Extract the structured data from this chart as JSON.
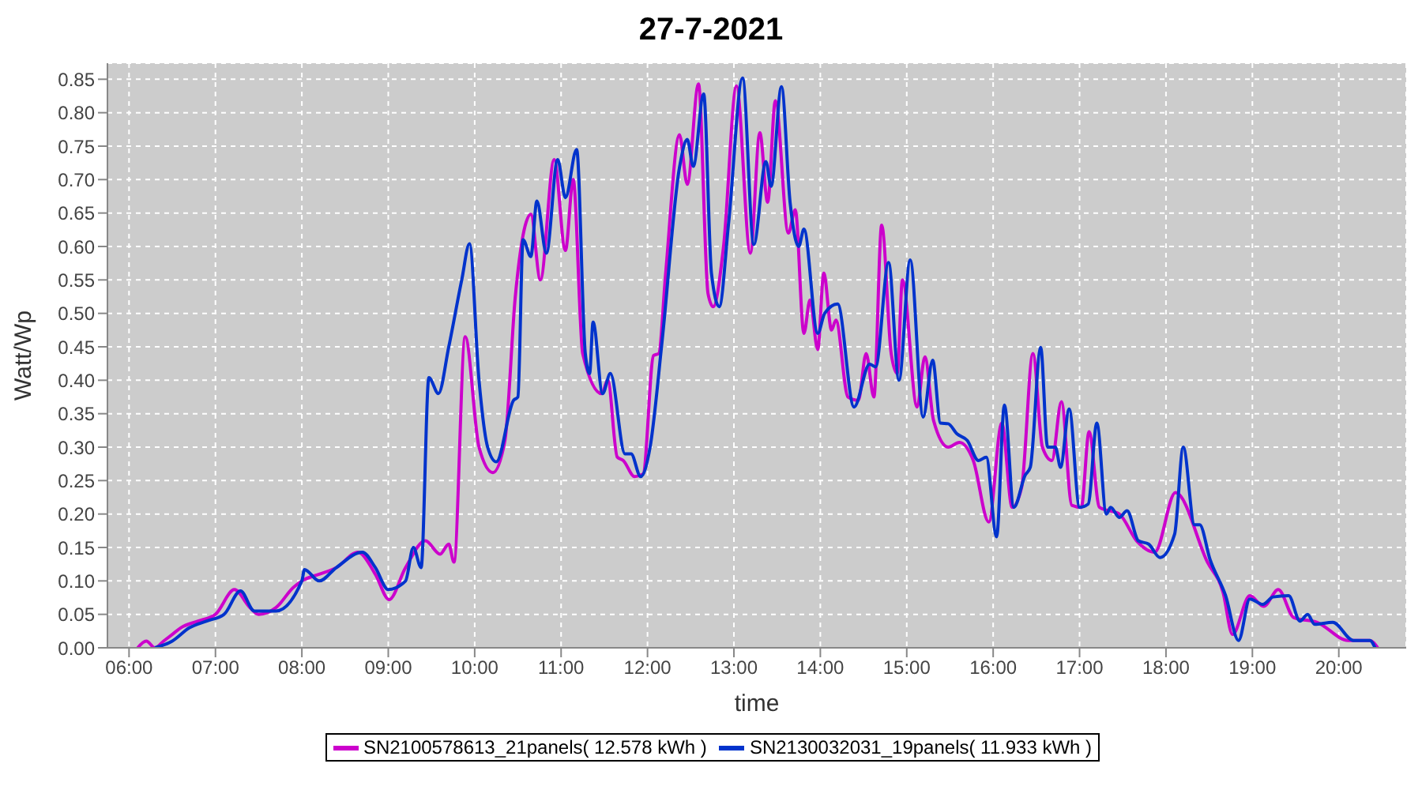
{
  "chart_data": {
    "type": "line",
    "title": "27-7-2021",
    "xlabel": "time",
    "ylabel": "Watt/Wp",
    "xlim": [
      5.75,
      20.78
    ],
    "ylim": [
      0,
      0.874
    ],
    "xticks": [
      {
        "value": 6,
        "label": "06:00"
      },
      {
        "value": 7,
        "label": "07:00"
      },
      {
        "value": 8,
        "label": "08:00"
      },
      {
        "value": 9,
        "label": "09:00"
      },
      {
        "value": 10,
        "label": "10:00"
      },
      {
        "value": 11,
        "label": "11:00"
      },
      {
        "value": 12,
        "label": "12:00"
      },
      {
        "value": 13,
        "label": "13:00"
      },
      {
        "value": 14,
        "label": "14:00"
      },
      {
        "value": 15,
        "label": "15:00"
      },
      {
        "value": 16,
        "label": "16:00"
      },
      {
        "value": 17,
        "label": "17:00"
      },
      {
        "value": 18,
        "label": "18:00"
      },
      {
        "value": 19,
        "label": "19:00"
      },
      {
        "value": 20,
        "label": "20:00"
      }
    ],
    "yticks": [
      {
        "value": 0,
        "label": "0.00"
      },
      {
        "value": 0.05,
        "label": "0.05"
      },
      {
        "value": 0.1,
        "label": "0.10"
      },
      {
        "value": 0.15,
        "label": "0.15"
      },
      {
        "value": 0.2,
        "label": "0.20"
      },
      {
        "value": 0.25,
        "label": "0.25"
      },
      {
        "value": 0.3,
        "label": "0.30"
      },
      {
        "value": 0.35,
        "label": "0.35"
      },
      {
        "value": 0.4,
        "label": "0.40"
      },
      {
        "value": 0.45,
        "label": "0.45"
      },
      {
        "value": 0.5,
        "label": "0.50"
      },
      {
        "value": 0.55,
        "label": "0.55"
      },
      {
        "value": 0.6,
        "label": "0.60"
      },
      {
        "value": 0.65,
        "label": "0.65"
      },
      {
        "value": 0.7,
        "label": "0.70"
      },
      {
        "value": 0.75,
        "label": "0.75"
      },
      {
        "value": 0.8,
        "label": "0.80"
      },
      {
        "value": 0.85,
        "label": "0.85"
      }
    ],
    "grid": true,
    "legend": "bottom",
    "line_style": "solid",
    "series": [
      {
        "name": "SN2100578613_21panels( 12.578 kWh )",
        "color": "#cc00cc",
        "x": [
          6.1,
          6.2,
          6.3,
          6.4,
          6.5,
          6.6,
          6.8,
          7.0,
          7.22,
          7.4,
          7.5,
          7.7,
          7.9,
          8.0,
          8.2,
          8.4,
          8.65,
          8.85,
          9.01,
          9.2,
          9.43,
          9.6,
          9.7,
          9.76,
          9.89,
          10.05,
          10.21,
          10.35,
          10.47,
          10.65,
          10.76,
          10.92,
          11.05,
          11.14,
          11.25,
          11.47,
          11.54,
          11.65,
          11.72,
          11.85,
          11.95,
          12.07,
          12.13,
          12.21,
          12.37,
          12.46,
          12.59,
          12.7,
          12.76,
          12.88,
          13.03,
          13.19,
          13.3,
          13.39,
          13.48,
          13.63,
          13.71,
          13.81,
          13.88,
          13.97,
          14.04,
          14.13,
          14.18,
          14.32,
          14.44,
          14.53,
          14.62,
          14.71,
          14.82,
          14.89,
          14.95,
          15.12,
          15.21,
          15.31,
          15.48,
          15.61,
          15.77,
          15.95,
          16.1,
          16.22,
          16.33,
          16.46,
          16.57,
          16.68,
          16.79,
          16.91,
          17.02,
          17.11,
          17.23,
          17.46,
          17.66,
          17.87,
          18.11,
          18.48,
          18.66,
          18.77,
          18.97,
          19.13,
          19.3,
          19.48,
          19.75,
          20.11,
          20.36,
          20.45
        ],
        "values": [
          0,
          0.01,
          0,
          0.01,
          0.02,
          0.03,
          0.04,
          0.05,
          0.087,
          0.06,
          0.05,
          0.06,
          0.09,
          0.1,
          0.11,
          0.12,
          0.143,
          0.11,
          0.072,
          0.12,
          0.16,
          0.14,
          0.155,
          0.128,
          0.465,
          0.3,
          0.262,
          0.31,
          0.525,
          0.648,
          0.55,
          0.73,
          0.594,
          0.7,
          0.44,
          0.38,
          0.4,
          0.285,
          0.28,
          0.256,
          0.26,
          0.437,
          0.44,
          0.56,
          0.767,
          0.693,
          0.843,
          0.53,
          0.51,
          0.6,
          0.84,
          0.59,
          0.77,
          0.666,
          0.818,
          0.62,
          0.655,
          0.47,
          0.52,
          0.446,
          0.56,
          0.475,
          0.49,
          0.375,
          0.37,
          0.44,
          0.375,
          0.632,
          0.44,
          0.41,
          0.55,
          0.36,
          0.435,
          0.34,
          0.3,
          0.307,
          0.28,
          0.188,
          0.336,
          0.21,
          0.24,
          0.44,
          0.3,
          0.28,
          0.368,
          0.213,
          0.21,
          0.323,
          0.21,
          0.2,
          0.16,
          0.143,
          0.232,
          0.128,
          0.083,
          0.02,
          0.078,
          0.062,
          0.087,
          0.045,
          0.038,
          0.011,
          0.011,
          0
        ]
      },
      {
        "name": "SN2130032031_19panels( 11.933 kWh )",
        "color": "#0033cc",
        "x": [
          6.3,
          6.5,
          6.7,
          6.9,
          7.1,
          7.29,
          7.45,
          7.7,
          8.0,
          8.03,
          8.2,
          8.4,
          8.7,
          8.85,
          9.0,
          9.2,
          9.29,
          9.38,
          9.47,
          9.58,
          9.7,
          9.85,
          9.94,
          10.05,
          10.15,
          10.25,
          10.45,
          10.5,
          10.56,
          10.65,
          10.72,
          10.83,
          10.96,
          11.05,
          11.18,
          11.28,
          11.33,
          11.37,
          11.48,
          11.57,
          11.74,
          11.81,
          11.92,
          12.03,
          12.17,
          12.37,
          12.46,
          12.53,
          12.65,
          12.74,
          12.83,
          12.94,
          13.1,
          13.23,
          13.37,
          13.43,
          13.55,
          13.65,
          13.75,
          13.81,
          13.97,
          14.05,
          14.2,
          14.39,
          14.57,
          14.64,
          14.79,
          14.91,
          15.04,
          15.19,
          15.3,
          15.39,
          15.48,
          15.58,
          15.7,
          15.83,
          15.92,
          16.04,
          16.13,
          16.24,
          16.37,
          16.43,
          16.55,
          16.63,
          16.72,
          16.78,
          16.88,
          17.0,
          17.1,
          17.2,
          17.31,
          17.36,
          17.46,
          17.55,
          17.68,
          17.8,
          17.93,
          18.1,
          18.2,
          18.33,
          18.39,
          18.51,
          18.69,
          18.84,
          18.97,
          19.12,
          19.24,
          19.42,
          19.55,
          19.64,
          19.72,
          19.93,
          20.17,
          20.36,
          20.42
        ],
        "values": [
          0,
          0.01,
          0.03,
          0.04,
          0.05,
          0.085,
          0.055,
          0.055,
          0.1,
          0.117,
          0.1,
          0.12,
          0.143,
          0.12,
          0.087,
          0.1,
          0.15,
          0.12,
          0.404,
          0.38,
          0.45,
          0.55,
          0.604,
          0.4,
          0.3,
          0.278,
          0.37,
          0.375,
          0.61,
          0.585,
          0.668,
          0.59,
          0.73,
          0.673,
          0.745,
          0.44,
          0.41,
          0.487,
          0.38,
          0.41,
          0.29,
          0.29,
          0.256,
          0.3,
          0.46,
          0.718,
          0.76,
          0.72,
          0.828,
          0.56,
          0.51,
          0.637,
          0.852,
          0.603,
          0.727,
          0.69,
          0.839,
          0.666,
          0.6,
          0.626,
          0.47,
          0.5,
          0.514,
          0.36,
          0.424,
          0.42,
          0.576,
          0.4,
          0.58,
          0.345,
          0.43,
          0.336,
          0.335,
          0.32,
          0.31,
          0.28,
          0.285,
          0.166,
          0.363,
          0.21,
          0.258,
          0.27,
          0.449,
          0.3,
          0.3,
          0.27,
          0.357,
          0.21,
          0.215,
          0.336,
          0.2,
          0.21,
          0.195,
          0.205,
          0.16,
          0.155,
          0.135,
          0.17,
          0.3,
          0.184,
          0.184,
          0.132,
          0.078,
          0.011,
          0.073,
          0.065,
          0.076,
          0.078,
          0.04,
          0.05,
          0.035,
          0.038,
          0.011,
          0.011,
          0
        ]
      }
    ]
  }
}
